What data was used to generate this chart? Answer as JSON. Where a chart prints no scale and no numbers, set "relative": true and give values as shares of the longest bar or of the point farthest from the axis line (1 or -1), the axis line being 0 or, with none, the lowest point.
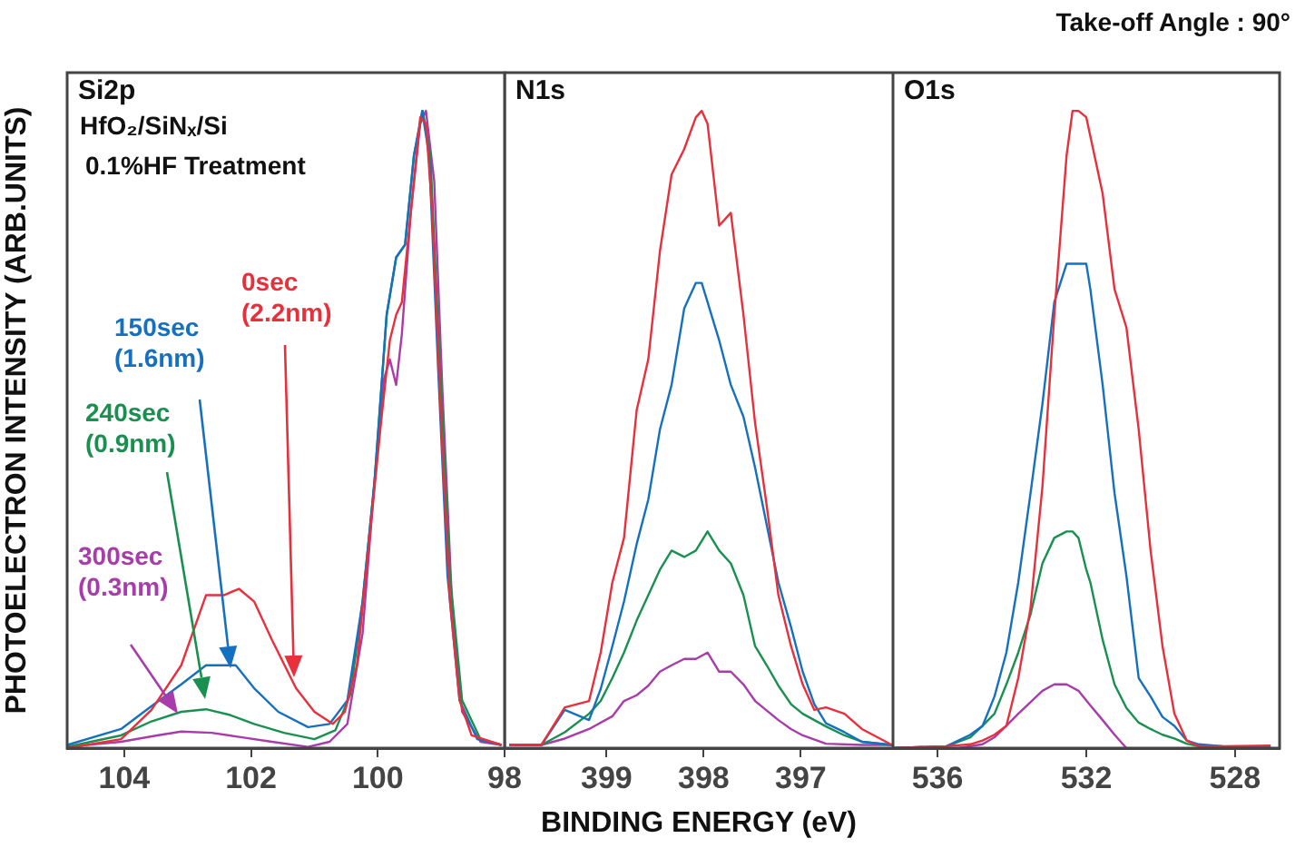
{
  "chart_data": [
    {
      "type": "line",
      "title": "Si2p",
      "ylabel": "PHOTOELECTRON INTENSITY (ARB.UNITS)",
      "relative": true,
      "xlim": [
        104.9,
        98
      ],
      "xticks": [
        104,
        102,
        100,
        98
      ],
      "tick_labels": "x",
      "grid": false,
      "legend": false,
      "annotations": [
        "HfO₂/SiNₓ/Si",
        "0.1%HF Treatment"
      ],
      "series": [
        {
          "name": "0sec (2.2nm)",
          "color": "#e8303c",
          "x": [
            104.9,
            104.05,
            103.57,
            103.1,
            102.71,
            102.43,
            102.19,
            101.95,
            101.67,
            101.29,
            101,
            100.71,
            100.52,
            100.33,
            100.14,
            99.95,
            99.81,
            99.71,
            99.62,
            99.48,
            99.33,
            99.24,
            99.14,
            99,
            98.86,
            98.71,
            98.52,
            98.05
          ],
          "values": [
            0,
            0.014,
            0.06,
            0.13,
            0.24,
            0.24,
            0.25,
            0.23,
            0.17,
            0.094,
            0.057,
            0.038,
            0.057,
            0.13,
            0.32,
            0.51,
            0.64,
            0.68,
            0.7,
            0.84,
            0.99,
            0.98,
            0.84,
            0.51,
            0.23,
            0.075,
            0.02,
            0.005
          ]
        },
        {
          "name": "150sec (1.6nm)",
          "color": "#1670c0",
          "x": [
            104.9,
            104.05,
            103.57,
            103.1,
            102.71,
            102.48,
            102.24,
            101.95,
            101.57,
            101.1,
            100.76,
            100.48,
            100.24,
            100.05,
            99.86,
            99.71,
            99.57,
            99.43,
            99.3,
            99.19,
            99.05,
            98.9,
            98.71,
            98.43,
            98.05
          ],
          "values": [
            0.005,
            0.03,
            0.066,
            0.1,
            0.13,
            0.13,
            0.13,
            0.094,
            0.057,
            0.033,
            0.038,
            0.075,
            0.23,
            0.42,
            0.68,
            0.77,
            0.79,
            0.93,
            1,
            0.93,
            0.6,
            0.27,
            0.075,
            0.014,
            0.005
          ]
        },
        {
          "name": "240sec (0.9nm)",
          "color": "#1a9050",
          "x": [
            104.9,
            104.05,
            103.57,
            103.1,
            102.71,
            102.33,
            101.95,
            101.48,
            101,
            100.67,
            100.43,
            100.24,
            100.05,
            99.86,
            99.71,
            99.57,
            99.43,
            99.29,
            99.17,
            99.02,
            98.86,
            98.67,
            98.38,
            98.05
          ],
          "values": [
            0.002,
            0.02,
            0.042,
            0.057,
            0.061,
            0.052,
            0.038,
            0.024,
            0.014,
            0.028,
            0.085,
            0.23,
            0.42,
            0.68,
            0.77,
            0.79,
            0.93,
            1,
            0.93,
            0.6,
            0.27,
            0.075,
            0.014,
            0.005
          ]
        },
        {
          "name": "300sec (0.3nm)",
          "color": "#a83caa",
          "x": [
            104.9,
            104.05,
            103.48,
            103.1,
            102.62,
            102.14,
            101.67,
            101.1,
            100.76,
            100.48,
            100.24,
            100.05,
            99.9,
            99.81,
            99.71,
            99.62,
            99.48,
            99.33,
            99.24,
            99.11,
            98.98,
            98.83,
            98.67,
            98.38,
            98.05
          ],
          "values": [
            0.002,
            0.01,
            0.02,
            0.026,
            0.024,
            0.017,
            0.01,
            0.002,
            0.01,
            0.038,
            0.18,
            0.42,
            0.58,
            0.61,
            0.57,
            0.65,
            0.84,
            0.98,
            1,
            0.89,
            0.56,
            0.23,
            0.057,
            0.01,
            0.005
          ]
        }
      ]
    },
    {
      "type": "line",
      "title": "N1s",
      "xlabel": "BINDING ENERGY (eV)",
      "relative": true,
      "xlim": [
        400.05,
        396.05
      ],
      "xticks": [
        399,
        398,
        397
      ],
      "tick_labels": "x",
      "grid": false,
      "legend": false,
      "series": [
        {
          "color": "#e8303c",
          "x": [
            400,
            399.67,
            399.43,
            399.18,
            399.06,
            398.94,
            398.82,
            398.69,
            398.57,
            398.45,
            398.33,
            398.2,
            398.08,
            398.02,
            397.96,
            397.84,
            397.72,
            397.59,
            397.47,
            397.35,
            397.23,
            397.1,
            396.98,
            396.86,
            396.74,
            396.55,
            396.37,
            396.06
          ],
          "values": [
            0.005,
            0.005,
            0.064,
            0.074,
            0.15,
            0.26,
            0.33,
            0.53,
            0.61,
            0.78,
            0.9,
            0.94,
            0.99,
            1,
            0.98,
            0.82,
            0.84,
            0.68,
            0.51,
            0.38,
            0.24,
            0.16,
            0.1,
            0.06,
            0.064,
            0.054,
            0.03,
            0.005
          ]
        },
        {
          "color": "#1670c0",
          "x": [
            400,
            399.67,
            399.43,
            399.18,
            399.06,
            398.94,
            398.82,
            398.69,
            398.57,
            398.45,
            398.33,
            398.2,
            398.08,
            398.02,
            397.96,
            397.84,
            397.72,
            397.59,
            397.47,
            397.35,
            397.23,
            397.1,
            396.98,
            396.86,
            396.74,
            396.55,
            396.37,
            396.06
          ],
          "values": [
            0.005,
            0.005,
            0.06,
            0.044,
            0.093,
            0.16,
            0.23,
            0.32,
            0.39,
            0.5,
            0.57,
            0.69,
            0.73,
            0.73,
            0.7,
            0.64,
            0.57,
            0.52,
            0.44,
            0.35,
            0.26,
            0.19,
            0.12,
            0.069,
            0.039,
            0.025,
            0.01,
            0.005
          ]
        },
        {
          "color": "#1a9050",
          "x": [
            400,
            399.67,
            399.43,
            399.18,
            399.06,
            398.94,
            398.82,
            398.69,
            398.57,
            398.45,
            398.33,
            398.2,
            398.08,
            397.96,
            397.84,
            397.72,
            397.59,
            397.47,
            397.35,
            397.23,
            397.1,
            396.98,
            396.74,
            396.55,
            396.37,
            396.06
          ],
          "values": [
            0.005,
            0.005,
            0.025,
            0.054,
            0.074,
            0.11,
            0.15,
            0.2,
            0.24,
            0.28,
            0.31,
            0.3,
            0.31,
            0.34,
            0.31,
            0.29,
            0.24,
            0.16,
            0.13,
            0.098,
            0.069,
            0.054,
            0.034,
            0.02,
            0.01,
            0.005
          ]
        },
        {
          "color": "#a83caa",
          "x": [
            400,
            399.67,
            399.43,
            399.18,
            398.94,
            398.82,
            398.69,
            398.57,
            398.45,
            398.33,
            398.2,
            398.08,
            397.96,
            397.84,
            397.72,
            397.59,
            397.47,
            397.35,
            397.23,
            397.1,
            396.98,
            396.74,
            396.37,
            396.06
          ],
          "values": [
            0.005,
            0.005,
            0.015,
            0.03,
            0.05,
            0.074,
            0.083,
            0.098,
            0.12,
            0.13,
            0.14,
            0.14,
            0.15,
            0.12,
            0.12,
            0.1,
            0.074,
            0.059,
            0.044,
            0.03,
            0.02,
            0.007,
            0.005,
            0.005
          ]
        }
      ]
    },
    {
      "type": "line",
      "title": "O1s",
      "relative": true,
      "xlim": [
        537.2,
        526.8
      ],
      "xticks": [
        536,
        532,
        528
      ],
      "tick_labels": "x",
      "grid": false,
      "legend": false,
      "annotations": [
        "Take-off Angle : 90°"
      ],
      "series": [
        {
          "color": "#e8303c",
          "x": [
            537.2,
            535.76,
            535.12,
            534.79,
            534.47,
            534.15,
            533.83,
            533.5,
            533.18,
            532.86,
            532.53,
            532.37,
            532.21,
            532,
            531.89,
            531.56,
            531.24,
            530.92,
            530.59,
            530.27,
            529.95,
            529.63,
            529.3,
            528.98,
            528.33,
            527.04
          ],
          "values": [
            0,
            0.003,
            0.006,
            0.012,
            0.021,
            0.035,
            0.11,
            0.22,
            0.41,
            0.68,
            0.93,
            1,
            1,
            0.99,
            0.96,
            0.87,
            0.72,
            0.66,
            0.5,
            0.31,
            0.16,
            0.054,
            0.012,
            0.003,
            0.003,
            0.004
          ]
        },
        {
          "color": "#1670c0",
          "x": [
            537.2,
            535.76,
            535.12,
            534.79,
            534.47,
            534.15,
            533.83,
            533.5,
            533.18,
            532.86,
            532.53,
            532.37,
            532.21,
            532,
            531.89,
            531.56,
            531.24,
            530.92,
            530.59,
            530.27,
            529.95,
            529.63,
            529.3,
            528.98,
            528.33,
            527.04
          ],
          "values": [
            0,
            0.003,
            0.021,
            0.035,
            0.081,
            0.15,
            0.26,
            0.4,
            0.54,
            0.7,
            0.76,
            0.76,
            0.76,
            0.76,
            0.72,
            0.57,
            0.4,
            0.27,
            0.11,
            0.081,
            0.049,
            0.035,
            0.012,
            0.006,
            0.003,
            0.002
          ]
        },
        {
          "color": "#1a9050",
          "x": [
            537.2,
            535.76,
            535.12,
            534.79,
            534.47,
            534.15,
            533.83,
            533.5,
            533.18,
            532.86,
            532.53,
            532.37,
            532.21,
            532,
            531.89,
            531.56,
            531.24,
            530.92,
            530.59,
            530.27,
            529.95,
            529.63,
            529.3,
            528.98,
            528.33,
            527.04
          ],
          "values": [
            0,
            0.003,
            0.017,
            0.035,
            0.054,
            0.1,
            0.15,
            0.21,
            0.29,
            0.33,
            0.34,
            0.34,
            0.33,
            0.28,
            0.26,
            0.17,
            0.1,
            0.063,
            0.04,
            0.03,
            0.021,
            0.015,
            0.007,
            0.003,
            0.002,
            0
          ]
        },
        {
          "color": "#a83caa",
          "x": [
            537.2,
            535.44,
            534.79,
            534.47,
            534.15,
            533.83,
            533.5,
            533.18,
            532.86,
            532.53,
            532.21,
            531.89,
            531.56,
            531.24,
            530.92
          ],
          "values": [
            0,
            0,
            0.006,
            0.017,
            0.035,
            0.054,
            0.072,
            0.09,
            0.1,
            0.1,
            0.09,
            0.067,
            0.044,
            0.021,
            0
          ]
        }
      ]
    }
  ]
}
